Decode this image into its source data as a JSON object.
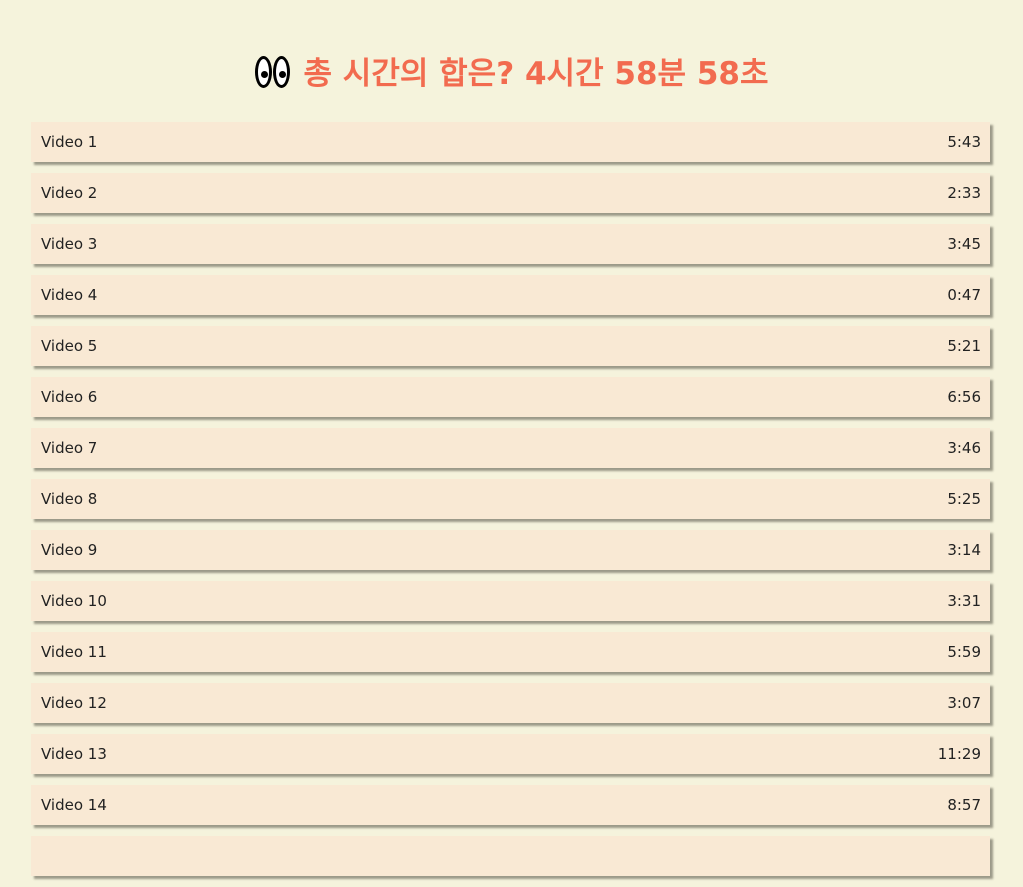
{
  "header": {
    "icon": "eyes-icon",
    "title": "총 시간의 합은? 4시간 58분 58초"
  },
  "videos": [
    {
      "title": "Video 1",
      "duration": "5:43"
    },
    {
      "title": "Video 2",
      "duration": "2:33"
    },
    {
      "title": "Video 3",
      "duration": "3:45"
    },
    {
      "title": "Video 4",
      "duration": "0:47"
    },
    {
      "title": "Video 5",
      "duration": "5:21"
    },
    {
      "title": "Video 6",
      "duration": "6:56"
    },
    {
      "title": "Video 7",
      "duration": "3:46"
    },
    {
      "title": "Video 8",
      "duration": "5:25"
    },
    {
      "title": "Video 9",
      "duration": "3:14"
    },
    {
      "title": "Video 10",
      "duration": "3:31"
    },
    {
      "title": "Video 11",
      "duration": "5:59"
    },
    {
      "title": "Video 12",
      "duration": "3:07"
    },
    {
      "title": "Video 13",
      "duration": "11:29"
    },
    {
      "title": "Video 14",
      "duration": "8:57"
    },
    {
      "title": "",
      "duration": ""
    }
  ],
  "colors": {
    "background": "#f5f3dc",
    "title": "#f26b4f",
    "item_background": "#f9e9d4"
  }
}
